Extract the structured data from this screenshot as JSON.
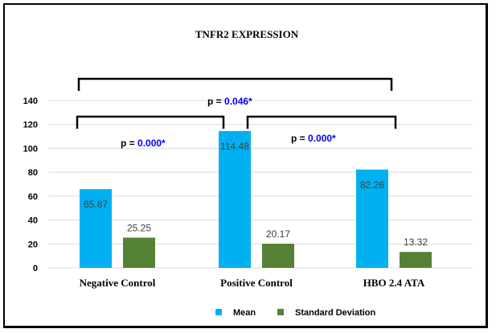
{
  "chart_data": {
    "type": "bar",
    "title": "TNFR2 EXPRESSION",
    "categories": [
      "Negative Control",
      "Positive Control",
      "HBO 2.4 ATA"
    ],
    "series": [
      {
        "name": "Mean",
        "values": [
          65.87,
          114.48,
          82.26
        ],
        "labels": [
          "65.87",
          "114.48",
          "82.26"
        ],
        "color": "#00b0f0"
      },
      {
        "name": "Standard Deviation",
        "values": [
          25.25,
          20.17,
          13.32
        ],
        "labels": [
          "25.25",
          "20.17",
          "13.32"
        ],
        "color": "#548235"
      }
    ],
    "ylim": [
      0,
      140
    ],
    "yticks": [
      "0",
      "20",
      "40",
      "60",
      "80",
      "100",
      "120",
      "140"
    ],
    "grid": true,
    "legend_position": "bottom",
    "annotations": [
      {
        "prefix": "p = ",
        "value": "0.046*",
        "between": [
          "Negative Control",
          "HBO 2.4 ATA"
        ]
      },
      {
        "prefix": "p = ",
        "value": "0.000*",
        "between": [
          "Negative Control",
          "Positive Control"
        ]
      },
      {
        "prefix": "p = ",
        "value": "0.000*",
        "between": [
          "Positive Control",
          "HBO 2.4 ATA"
        ]
      }
    ],
    "colors": {
      "pvalue": "#0000ff",
      "grid": "#d9d9d9",
      "bracket": "#000000"
    }
  }
}
